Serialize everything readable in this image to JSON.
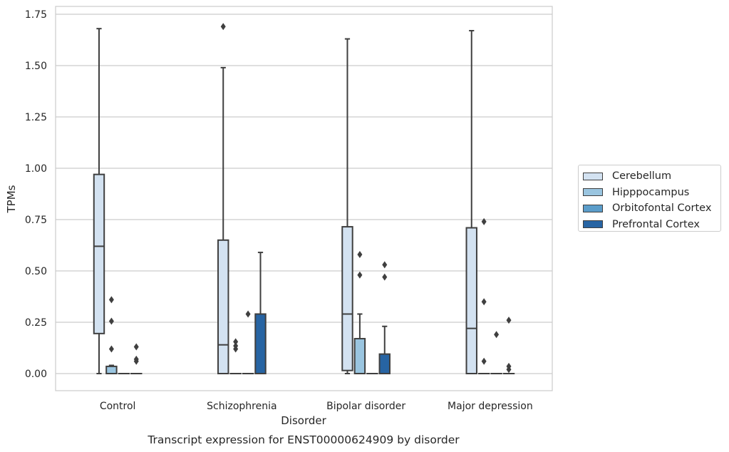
{
  "chart_data": {
    "type": "box",
    "title": "Transcript expression for ENST00000624909 by disorder",
    "xlabel": "Disorder",
    "ylabel": "TPMs",
    "ylim": [
      -0.08,
      1.76
    ],
    "yticks": [
      "0.00",
      "0.25",
      "0.50",
      "0.75",
      "1.00",
      "1.25",
      "1.50",
      "1.75"
    ],
    "grid": "horizontal",
    "legend_position": "right",
    "categories": [
      "Control",
      "Schizophrenia",
      "Bipolar disorder",
      "Major depression"
    ],
    "series": [
      {
        "name": "Cerebellum",
        "color": "#d3e2f1",
        "boxes": [
          {
            "category": "Control",
            "min": 0.0,
            "q1": 0.195,
            "median": 0.62,
            "q3": 0.97,
            "max": 1.68,
            "outliers": []
          },
          {
            "category": "Schizophrenia",
            "min": 0.0,
            "q1": 0.0,
            "median": 0.14,
            "q3": 0.65,
            "max": 1.49,
            "outliers": [
              1.69
            ]
          },
          {
            "category": "Bipolar disorder",
            "min": 0.0,
            "q1": 0.015,
            "median": 0.29,
            "q3": 0.715,
            "max": 1.63,
            "outliers": []
          },
          {
            "category": "Major depression",
            "min": 0.0,
            "q1": 0.0,
            "median": 0.22,
            "q3": 0.71,
            "max": 1.67,
            "outliers": []
          }
        ]
      },
      {
        "name": "Hipppocampus",
        "color": "#9ac5e0",
        "boxes": [
          {
            "category": "Control",
            "min": 0.0,
            "q1": 0.0,
            "median": 0.0,
            "q3": 0.035,
            "max": 0.04,
            "outliers": [
              0.12,
              0.255,
              0.36
            ]
          },
          {
            "category": "Schizophrenia",
            "min": 0.0,
            "q1": 0.0,
            "median": 0.0,
            "q3": 0.0,
            "max": 0.0,
            "outliers": [
              0.12,
              0.135,
              0.155
            ]
          },
          {
            "category": "Bipolar disorder",
            "min": 0.0,
            "q1": 0.0,
            "median": 0.0,
            "q3": 0.17,
            "max": 0.29,
            "outliers": [
              0.48,
              0.58
            ]
          },
          {
            "category": "Major depression",
            "min": 0.0,
            "q1": 0.0,
            "median": 0.0,
            "q3": 0.0,
            "max": 0.0,
            "outliers": [
              0.06,
              0.35,
              0.74
            ]
          }
        ]
      },
      {
        "name": "Orbitofontal Cortex",
        "color": "#5b9dca",
        "boxes": [
          {
            "category": "Control",
            "min": 0.0,
            "q1": 0.0,
            "median": 0.0,
            "q3": 0.0,
            "max": 0.0,
            "outliers": []
          },
          {
            "category": "Schizophrenia",
            "min": 0.0,
            "q1": 0.0,
            "median": 0.0,
            "q3": 0.0,
            "max": 0.0,
            "outliers": [
              0.29
            ]
          },
          {
            "category": "Bipolar disorder",
            "min": 0.0,
            "q1": 0.0,
            "median": 0.0,
            "q3": 0.0,
            "max": 0.0,
            "outliers": []
          },
          {
            "category": "Major depression",
            "min": 0.0,
            "q1": 0.0,
            "median": 0.0,
            "q3": 0.0,
            "max": 0.0,
            "outliers": [
              0.19
            ]
          }
        ]
      },
      {
        "name": "Prefrontal Cortex",
        "color": "#2764a3",
        "boxes": [
          {
            "category": "Control",
            "min": 0.0,
            "q1": 0.0,
            "median": 0.0,
            "q3": 0.0,
            "max": 0.0,
            "outliers": [
              0.06,
              0.07,
              0.13
            ]
          },
          {
            "category": "Schizophrenia",
            "min": 0.0,
            "q1": 0.0,
            "median": 0.0,
            "q3": 0.29,
            "max": 0.59,
            "outliers": []
          },
          {
            "category": "Bipolar disorder",
            "min": 0.0,
            "q1": 0.0,
            "median": 0.0,
            "q3": 0.095,
            "max": 0.23,
            "outliers": [
              0.47,
              0.53
            ]
          },
          {
            "category": "Major depression",
            "min": 0.0,
            "q1": 0.0,
            "median": 0.0,
            "q3": 0.0,
            "max": 0.0,
            "outliers": [
              0.02,
              0.035,
              0.26
            ]
          }
        ]
      }
    ]
  }
}
